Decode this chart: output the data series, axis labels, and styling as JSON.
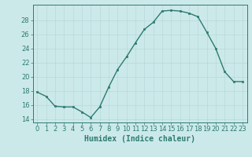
{
  "x": [
    0,
    1,
    2,
    3,
    4,
    5,
    6,
    7,
    8,
    9,
    10,
    11,
    12,
    13,
    14,
    15,
    16,
    17,
    18,
    19,
    20,
    21,
    22,
    23
  ],
  "y": [
    17.8,
    17.2,
    15.8,
    15.7,
    15.7,
    15.0,
    14.2,
    15.7,
    18.5,
    21.0,
    22.8,
    24.8,
    26.7,
    27.7,
    29.3,
    29.4,
    29.3,
    29.0,
    28.5,
    26.3,
    24.0,
    20.7,
    19.3,
    19.3
  ],
  "line_color": "#2d7b6f",
  "marker": "s",
  "markersize": 2,
  "linewidth": 1.0,
  "bg_color": "#cce9ea",
  "grid_color": "#b8d8d8",
  "xlabel": "Humidex (Indice chaleur)",
  "ylim": [
    13.5,
    30.2
  ],
  "yticks": [
    14,
    16,
    18,
    20,
    22,
    24,
    26,
    28
  ],
  "xlim": [
    -0.5,
    23.5
  ],
  "xticks": [
    0,
    1,
    2,
    3,
    4,
    5,
    6,
    7,
    8,
    9,
    10,
    11,
    12,
    13,
    14,
    15,
    16,
    17,
    18,
    19,
    20,
    21,
    22,
    23
  ],
  "xlabel_fontsize": 7,
  "tick_fontsize": 6,
  "tick_color": "#2d7b6f",
  "label_color": "#2d7b6f"
}
